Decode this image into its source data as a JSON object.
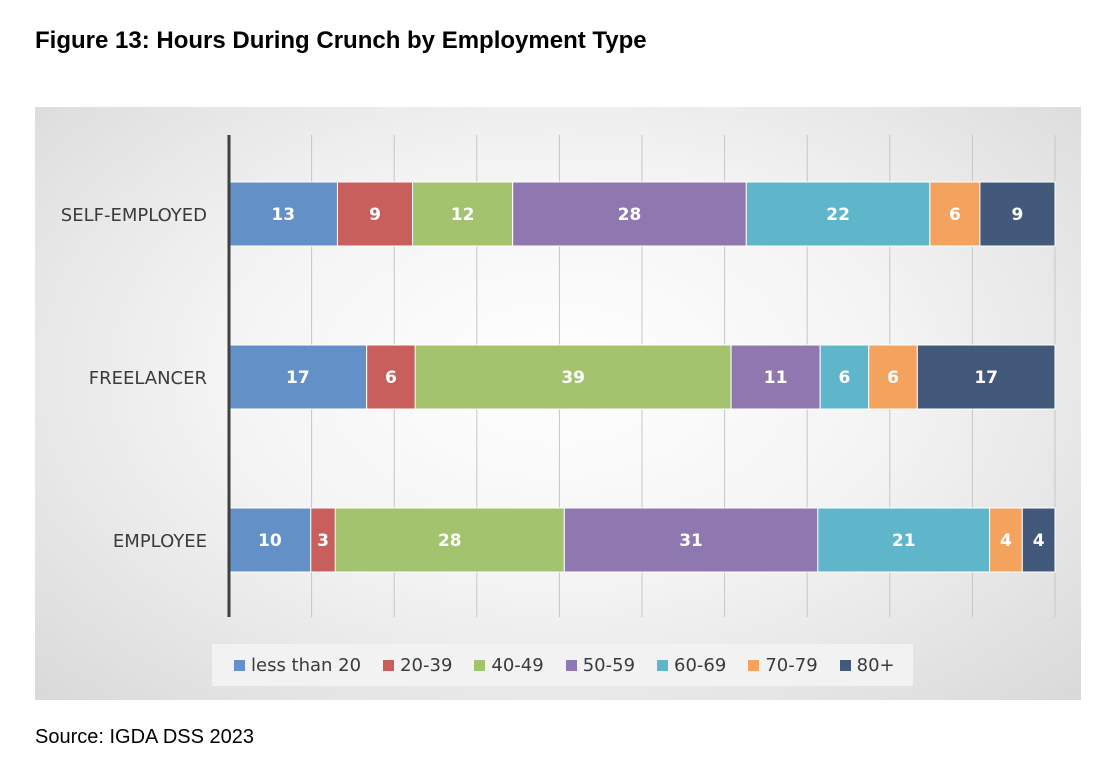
{
  "figure": {
    "title": "Figure 13: Hours During Crunch by Employment Type",
    "source": "Source: IGDA DSS 2023"
  },
  "chart_data": {
    "type": "bar",
    "orientation": "horizontal",
    "stacked": true,
    "categories": [
      "SELF-EMPLOYED",
      "FREELANCER",
      "EMPLOYEE"
    ],
    "series": [
      {
        "name": "less than 20",
        "color": "#6490c8",
        "values": [
          13,
          17,
          10
        ]
      },
      {
        "name": "20-39",
        "color": "#c85f5c",
        "values": [
          9,
          6,
          3
        ]
      },
      {
        "name": "40-49",
        "color": "#a3c36e",
        "values": [
          12,
          39,
          28
        ]
      },
      {
        "name": "50-59",
        "color": "#8f77b0",
        "values": [
          28,
          11,
          31
        ]
      },
      {
        "name": "60-69",
        "color": "#5fb6cb",
        "values": [
          22,
          6,
          21
        ]
      },
      {
        "name": "70-79",
        "color": "#f3a35e",
        "values": [
          6,
          6,
          4
        ]
      },
      {
        "name": "80+",
        "color": "#43597c",
        "values": [
          9,
          17,
          4
        ]
      }
    ],
    "data_labels": true,
    "legend_position": "bottom",
    "grid": {
      "vertical": true
    }
  }
}
